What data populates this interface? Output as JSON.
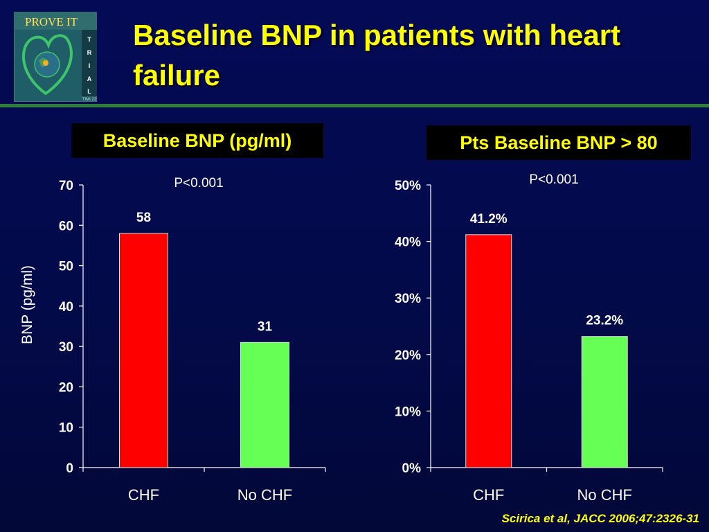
{
  "slide": {
    "title": "Baseline BNP in patients with heart failure",
    "logo": {
      "top_text": "PROVE IT",
      "side_letters": [
        "T",
        "R",
        "I",
        "A",
        "L"
      ],
      "bottom_text": "TIMI 22"
    },
    "citation": "Scirica et al, JACC 2006;47:2326-31",
    "colors": {
      "background": "#040a55",
      "title": "#ffff00",
      "divider": "#2e7d3a"
    }
  },
  "chart_data": [
    {
      "type": "bar",
      "title": "Baseline BNP (pg/ml)",
      "annotation": "P<0.001",
      "categories": [
        "CHF",
        "No CHF"
      ],
      "values": [
        58,
        31
      ],
      "value_labels": [
        "58",
        "31"
      ],
      "colors": [
        "#ff0000",
        "#66ff55"
      ],
      "ylabel": "BNP (pg/ml)",
      "xlabel": "",
      "ylim": [
        0,
        70
      ],
      "yticks": [
        0,
        10,
        20,
        30,
        40,
        50,
        60,
        70
      ],
      "ytick_labels": [
        "0",
        "10",
        "20",
        "30",
        "40",
        "50",
        "60",
        "70"
      ],
      "grid": false
    },
    {
      "type": "bar",
      "title": "Pts Baseline BNP > 80",
      "annotation": "P<0.001",
      "categories": [
        "CHF",
        "No CHF"
      ],
      "values": [
        41.2,
        23.2
      ],
      "value_labels": [
        "41.2%",
        "23.2%"
      ],
      "colors": [
        "#ff0000",
        "#66ff55"
      ],
      "ylabel": "",
      "xlabel": "",
      "ylim": [
        0,
        50
      ],
      "yticks": [
        0,
        10,
        20,
        30,
        40,
        50
      ],
      "ytick_labels": [
        "0%",
        "10%",
        "20%",
        "30%",
        "40%",
        "50%"
      ],
      "grid": false
    }
  ]
}
